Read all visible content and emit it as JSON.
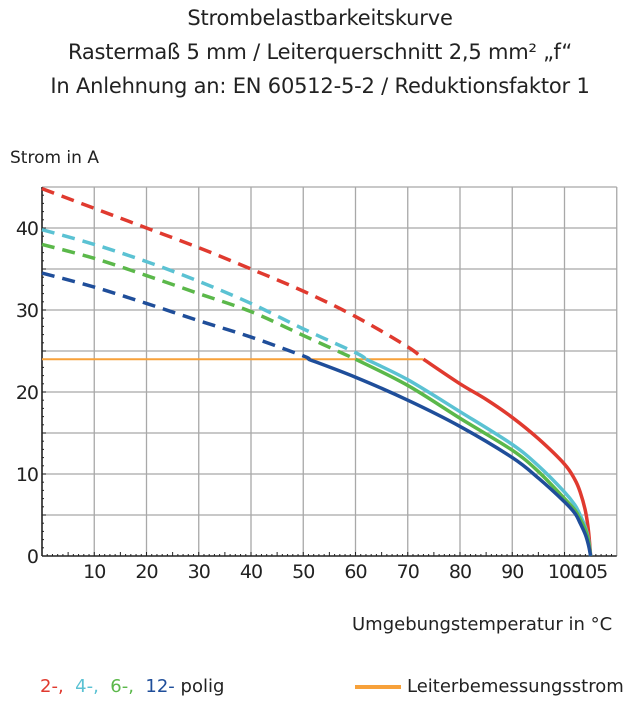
{
  "chart_data": {
    "type": "line",
    "title_lines": [
      "Strombelastbarkeitskurve",
      "Rastermaß 5 mm / Leiterquerschnitt 2,5 mm² „f“",
      "In Anlehnung an: EN 60512-5-2 / Reduktionsfaktor 1"
    ],
    "ylabel": "Strom in A",
    "xlabel": "Umgebungstemperatur in °C",
    "xlim": [
      0,
      110
    ],
    "ylim": [
      0,
      45
    ],
    "x_ticks": [
      10,
      20,
      30,
      40,
      50,
      60,
      70,
      80,
      90,
      100,
      105
    ],
    "y_ticks": [
      0,
      10,
      20,
      30,
      40
    ],
    "grid": true,
    "series": [
      {
        "name": "2-",
        "color": "#e03a2f",
        "solid_from": 73,
        "x": [
          0,
          10,
          20,
          30,
          40,
          50,
          60,
          70,
          73,
          80,
          85,
          90,
          95,
          100,
          102,
          103,
          104,
          104.6,
          105
        ],
        "y": [
          44.8,
          42.4,
          40,
          37.6,
          35,
          32.3,
          29.2,
          25.5,
          24,
          21,
          19.1,
          16.9,
          14.3,
          11.2,
          9.3,
          7.8,
          5.5,
          3,
          0
        ]
      },
      {
        "name": "4-",
        "color": "#5bc2d3",
        "solid_from": 62,
        "x": [
          0,
          10,
          20,
          30,
          40,
          50,
          60,
          62,
          70,
          80,
          90,
          95,
          100,
          102,
          103,
          104,
          104.6,
          105
        ],
        "y": [
          39.8,
          38,
          35.9,
          33.5,
          30.8,
          27.7,
          24.8,
          24,
          21.5,
          17.6,
          13.6,
          11,
          7.8,
          6.2,
          5,
          3.5,
          2,
          0
        ]
      },
      {
        "name": "6-",
        "color": "#5bb84a",
        "solid_from": 60,
        "x": [
          0,
          10,
          20,
          30,
          40,
          50,
          60,
          70,
          80,
          90,
          95,
          100,
          102,
          103,
          104,
          104.6,
          105
        ],
        "y": [
          38,
          36.3,
          34.2,
          32,
          29.8,
          26.9,
          24,
          20.8,
          16.8,
          12.9,
          10.3,
          7,
          5.6,
          4.5,
          3.2,
          1.8,
          0
        ]
      },
      {
        "name": "12-",
        "color": "#1f4e9a",
        "solid_from": 51,
        "x": [
          0,
          10,
          20,
          30,
          40,
          50,
          51,
          60,
          70,
          80,
          90,
          95,
          100,
          102,
          103,
          104,
          104.6,
          105
        ],
        "y": [
          34.5,
          32.8,
          30.8,
          28.7,
          26.7,
          24.4,
          24,
          21.8,
          19,
          15.8,
          12,
          9.5,
          6.6,
          5.2,
          4,
          2.6,
          1.3,
          0
        ]
      }
    ],
    "reference_line": {
      "name": "Leiterbemessungsstrom",
      "color": "#f7a13a",
      "y": 24,
      "x": [
        0,
        73
      ]
    },
    "legend": {
      "series_labels": [
        "2-,",
        "4-,",
        "6-,",
        "12-"
      ],
      "series_suffix": "polig",
      "reference_label": "Leiterbemessungsstrom",
      "placement": "bottom"
    }
  }
}
